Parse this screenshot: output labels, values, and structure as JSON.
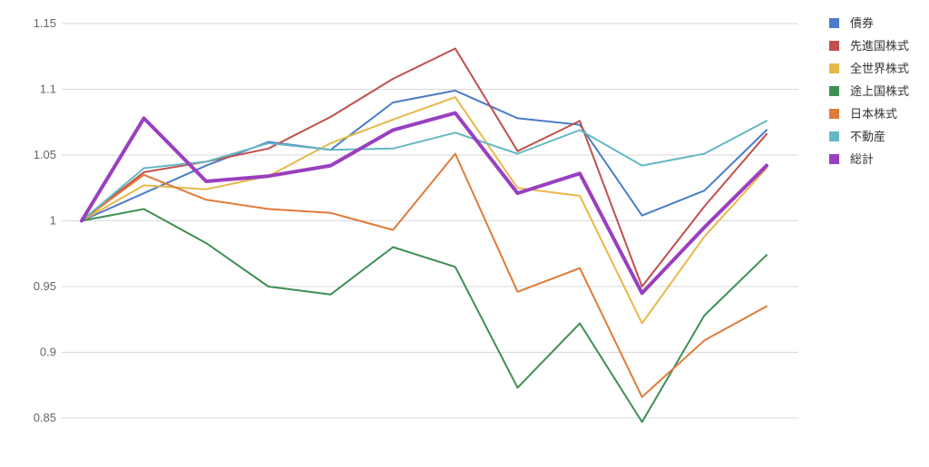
{
  "chart_data": {
    "type": "line",
    "x": [
      1,
      2,
      3,
      4,
      5,
      6,
      7,
      8,
      9,
      10,
      11,
      12
    ],
    "ylim": [
      0.85,
      1.15
    ],
    "y_ticks": [
      "0.85",
      "0.9",
      "0.95",
      "1",
      "1.05",
      "1.1",
      "1.15"
    ],
    "grid": true,
    "legend_position": "right",
    "series": [
      {
        "name": "債券",
        "color": "#4a7cc9",
        "width": 2,
        "values": [
          1.0,
          1.021,
          1.042,
          1.06,
          1.054,
          1.09,
          1.099,
          1.078,
          1.073,
          1.004,
          1.023,
          1.069
        ]
      },
      {
        "name": "先進国株式",
        "color": "#c0504d",
        "width": 2,
        "values": [
          1.0,
          1.037,
          1.045,
          1.055,
          1.079,
          1.108,
          1.131,
          1.053,
          1.076,
          0.95,
          1.011,
          1.066
        ]
      },
      {
        "name": "全世界株式",
        "color": "#e8b84a",
        "width": 2,
        "values": [
          1.0,
          1.027,
          1.024,
          1.034,
          1.059,
          1.077,
          1.094,
          1.025,
          1.019,
          0.922,
          0.988,
          1.04
        ]
      },
      {
        "name": "途上国株式",
        "color": "#3f8f54",
        "width": 2,
        "values": [
          1.0,
          1.009,
          0.983,
          0.95,
          0.944,
          0.98,
          0.965,
          0.873,
          0.922,
          0.847,
          0.928,
          0.974
        ]
      },
      {
        "name": "日本株式",
        "color": "#e07b39",
        "width": 2,
        "values": [
          1.0,
          1.035,
          1.016,
          1.009,
          1.006,
          0.993,
          1.051,
          0.946,
          0.964,
          0.866,
          0.909,
          0.935
        ]
      },
      {
        "name": "不動産",
        "color": "#66b8c4",
        "width": 2,
        "values": [
          1.0,
          1.04,
          1.045,
          1.059,
          1.054,
          1.055,
          1.067,
          1.051,
          1.069,
          1.042,
          1.051,
          1.076
        ]
      },
      {
        "name": "総計",
        "color": "#9a3fbf",
        "width": 4,
        "values": [
          1.0,
          1.078,
          1.03,
          1.034,
          1.042,
          1.069,
          1.082,
          1.021,
          1.036,
          0.945,
          0.995,
          1.042
        ]
      }
    ]
  }
}
